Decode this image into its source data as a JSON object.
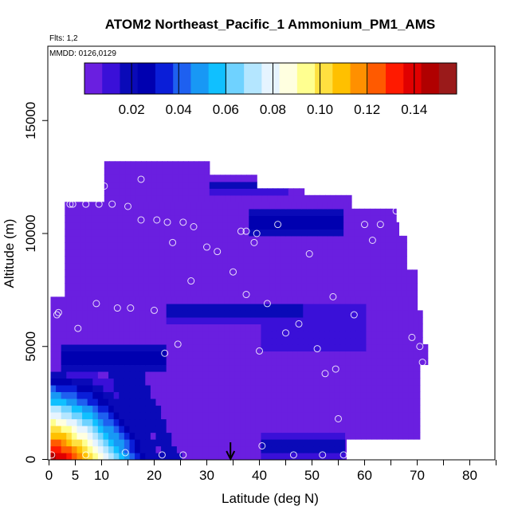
{
  "chart_data": {
    "type": "heatmap",
    "title": "ATOM2 Northeast_Pacific_1 Ammonium_PM1_AMS",
    "flights_label": "Flts: 1,2",
    "dates_label": "MMDD: 0126,0129",
    "xlabel": "Latitude (deg N)",
    "ylabel": "Altitude (m)",
    "xlim": [
      0,
      85
    ],
    "ylim": [
      0,
      18000
    ],
    "x_ticks": [
      "0",
      "5",
      "10",
      "20",
      "30",
      "40",
      "50",
      "60",
      "70",
      "80"
    ],
    "y_ticks": [
      "0",
      "5000",
      "10000",
      "15000"
    ],
    "colorbar": {
      "range": [
        0,
        0.158
      ],
      "tick_labels": [
        "0.02",
        "0.04",
        "0.06",
        "0.08",
        "0.10",
        "0.12",
        "0.14"
      ],
      "colors": [
        "#6a1fe0",
        "#3a10d8",
        "#0a0ab8",
        "#0000b0",
        "#0a1ed8",
        "#1e60f0",
        "#1898f5",
        "#10c0ff",
        "#6fd2ff",
        "#b4e6ff",
        "#e6f4ff",
        "#ffffe0",
        "#ffff90",
        "#ffe040",
        "#ffc000",
        "#ff9000",
        "#ff5a00",
        "#ff1a00",
        "#e00000",
        "#b00000",
        "#9a1a1a"
      ]
    },
    "marker": {
      "x": 34.5,
      "label": "arrow"
    },
    "field": {
      "background": 0.005,
      "features": [
        {
          "kind": "band",
          "lat": [
            31,
            45
          ],
          "alt": [
            12400,
            11800
          ],
          "value": 0.018
        },
        {
          "kind": "band",
          "lat": [
            38,
            56
          ],
          "alt": [
            11200,
            10000
          ],
          "value": 0.03
        },
        {
          "kind": "band",
          "lat": [
            22,
            48
          ],
          "alt": [
            7000,
            6000
          ],
          "value": 0.02
        },
        {
          "kind": "band",
          "lat": [
            40,
            60
          ],
          "alt": [
            6800,
            4800
          ],
          "value": 0.015
        },
        {
          "kind": "band",
          "lat": [
            2,
            22
          ],
          "alt": [
            5000,
            3800
          ],
          "value": 0.03
        },
        {
          "kind": "plume",
          "lat": [
            0,
            22
          ],
          "alt": [
            0,
            3800
          ],
          "value": 0.15
        },
        {
          "kind": "band",
          "lat": [
            40,
            56
          ],
          "alt": [
            1200,
            0
          ],
          "value": 0.02
        }
      ]
    },
    "points": [
      {
        "x": 0.5,
        "y": 200
      },
      {
        "x": 7,
        "y": 200
      },
      {
        "x": 14.5,
        "y": 300
      },
      {
        "x": 21.5,
        "y": 200
      },
      {
        "x": 25.5,
        "y": 200
      },
      {
        "x": 40.5,
        "y": 600
      },
      {
        "x": 46.5,
        "y": 200
      },
      {
        "x": 52,
        "y": 200
      },
      {
        "x": 56,
        "y": 200
      },
      {
        "x": 70,
        "y": 700
      },
      {
        "x": 55,
        "y": 1800
      },
      {
        "x": 52.5,
        "y": 3800
      },
      {
        "x": 54.5,
        "y": 4000
      },
      {
        "x": 22,
        "y": 4700
      },
      {
        "x": 24.5,
        "y": 5100
      },
      {
        "x": 40,
        "y": 4800
      },
      {
        "x": 51,
        "y": 4900
      },
      {
        "x": 71,
        "y": 4300
      },
      {
        "x": 70.5,
        "y": 5000
      },
      {
        "x": 69,
        "y": 5400
      },
      {
        "x": 5.5,
        "y": 5800
      },
      {
        "x": 45,
        "y": 5600
      },
      {
        "x": 47.5,
        "y": 6000
      },
      {
        "x": 1.5,
        "y": 6400
      },
      {
        "x": 1.8,
        "y": 6500
      },
      {
        "x": 9,
        "y": 6900
      },
      {
        "x": 13,
        "y": 6700
      },
      {
        "x": 15.5,
        "y": 6700
      },
      {
        "x": 20,
        "y": 6600
      },
      {
        "x": 41.5,
        "y": 6900
      },
      {
        "x": 58,
        "y": 6400
      },
      {
        "x": 37.5,
        "y": 7300
      },
      {
        "x": 54,
        "y": 7200
      },
      {
        "x": 27,
        "y": 7900
      },
      {
        "x": 35,
        "y": 8300
      },
      {
        "x": 30,
        "y": 9400
      },
      {
        "x": 32,
        "y": 9200
      },
      {
        "x": 23.5,
        "y": 9600
      },
      {
        "x": 39,
        "y": 9600
      },
      {
        "x": 49.5,
        "y": 9100
      },
      {
        "x": 17.5,
        "y": 10600
      },
      {
        "x": 20.5,
        "y": 10600
      },
      {
        "x": 22.5,
        "y": 10500
      },
      {
        "x": 25.5,
        "y": 10500
      },
      {
        "x": 27.5,
        "y": 10300
      },
      {
        "x": 36.5,
        "y": 10100
      },
      {
        "x": 37.5,
        "y": 10100
      },
      {
        "x": 39.5,
        "y": 10000
      },
      {
        "x": 43.5,
        "y": 10400
      },
      {
        "x": 60,
        "y": 10400
      },
      {
        "x": 63,
        "y": 10400
      },
      {
        "x": 61.5,
        "y": 9700
      },
      {
        "x": 66,
        "y": 11000
      },
      {
        "x": 4,
        "y": 11300
      },
      {
        "x": 4.5,
        "y": 11300
      },
      {
        "x": 7,
        "y": 11300
      },
      {
        "x": 9.5,
        "y": 11300
      },
      {
        "x": 12,
        "y": 11300
      },
      {
        "x": 15,
        "y": 11200
      },
      {
        "x": 10.5,
        "y": 12100
      },
      {
        "x": 17.5,
        "y": 12400
      }
    ]
  }
}
